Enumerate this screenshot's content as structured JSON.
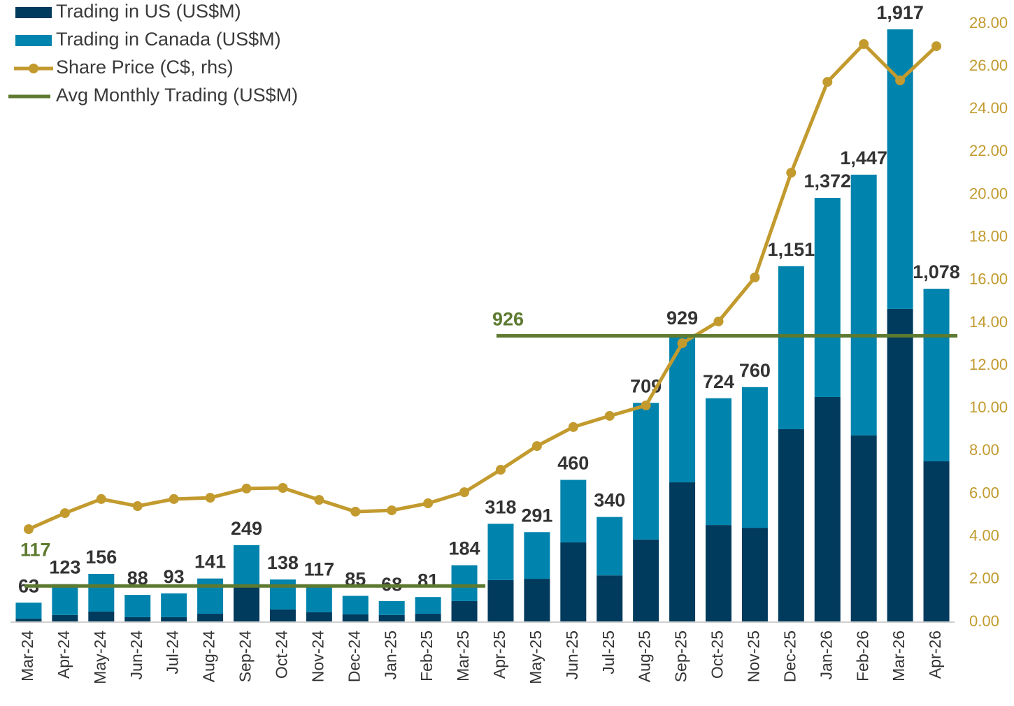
{
  "chart_data": {
    "type": "bar",
    "stacked": true,
    "categories": [
      "Mar-24",
      "Apr-24",
      "May-24",
      "Jun-24",
      "Jul-24",
      "Aug-24",
      "Sep-24",
      "Oct-24",
      "Nov-24",
      "Dec-24",
      "Jan-25",
      "Feb-25",
      "Mar-25",
      "Apr-25",
      "May-25",
      "Jun-25",
      "Jul-25",
      "Aug-25",
      "Sep-25",
      "Oct-25",
      "Nov-25",
      "Dec-25",
      "Jan-26",
      "Feb-26",
      "Mar-26",
      "Apr-26"
    ],
    "series": [
      {
        "name": "Trading in US (US$M)",
        "color": "#003a5c",
        "values": [
          11,
          23,
          34,
          16,
          16,
          27,
          122,
          41,
          32,
          25,
          23,
          27,
          68,
          136,
          140,
          258,
          151,
          267,
          452,
          314,
          305,
          624,
          728,
          604,
          1013,
          520
        ]
      },
      {
        "name": "Trading in Canada (US$M)",
        "color": "#0083ad",
        "values": [
          52,
          100,
          122,
          72,
          77,
          114,
          127,
          97,
          85,
          60,
          45,
          54,
          116,
          182,
          151,
          202,
          189,
          442,
          477,
          410,
          455,
          527,
          644,
          843,
          904,
          558
        ]
      },
      {
        "name": "Share Price (C$, rhs)",
        "color": "#c29a2e",
        "type": "line",
        "axis": "y2",
        "values": [
          4.35,
          5.1,
          5.76,
          5.43,
          5.76,
          5.82,
          6.25,
          6.28,
          5.72,
          5.17,
          5.23,
          5.56,
          6.08,
          7.13,
          8.24,
          9.13,
          9.65,
          10.14,
          13.05,
          14.07,
          16.13,
          21.03,
          25.28,
          27.05,
          25.35,
          26.95
        ]
      },
      {
        "name": "Avg Monthly Trading (US$M)",
        "color": "#5d7a30",
        "type": "line",
        "values": [
          117,
          117,
          117,
          117,
          117,
          117,
          117,
          117,
          117,
          117,
          117,
          117,
          117,
          926,
          926,
          926,
          926,
          926,
          926,
          926,
          926,
          926,
          926,
          926,
          926,
          926
        ]
      }
    ],
    "totals": {
      "values": [
        63,
        123,
        156,
        88,
        93,
        141,
        249,
        138,
        117,
        85,
        68,
        81,
        184,
        318,
        291,
        460,
        340,
        709,
        929,
        724,
        760,
        1151,
        1372,
        1447,
        1917,
        1078
      ],
      "value_labels": [
        "63",
        "123",
        "156",
        "88",
        "93",
        "141",
        "249",
        "138",
        "117",
        "85",
        "68",
        "81",
        "184",
        "318",
        "291",
        "460",
        "340",
        "709",
        "929",
        "724",
        "760",
        "1,151",
        "1,372",
        "1,447",
        "1,917",
        "1,078"
      ]
    },
    "ylim": [
      0,
      1935
    ],
    "y2lim": [
      0,
      28
    ],
    "y2ticks": [
      {
        "value": 0,
        "label": "0.00"
      },
      {
        "value": 2,
        "label": "2.00"
      },
      {
        "value": 4,
        "label": "4.00"
      },
      {
        "value": 6,
        "label": "6.00"
      },
      {
        "value": 8,
        "label": "8.00"
      },
      {
        "value": 10,
        "label": "10.00"
      },
      {
        "value": 12,
        "label": "12.00"
      },
      {
        "value": 14,
        "label": "14.00"
      },
      {
        "value": 16,
        "label": "16.00"
      },
      {
        "value": 18,
        "label": "18.00"
      },
      {
        "value": 20,
        "label": "20.00"
      },
      {
        "value": 22,
        "label": "22.00"
      },
      {
        "value": 24,
        "label": "24.00"
      },
      {
        "value": 26,
        "label": "26.00"
      },
      {
        "value": 28,
        "label": "28.00"
      }
    ],
    "legend": "top-left",
    "grid": false
  }
}
